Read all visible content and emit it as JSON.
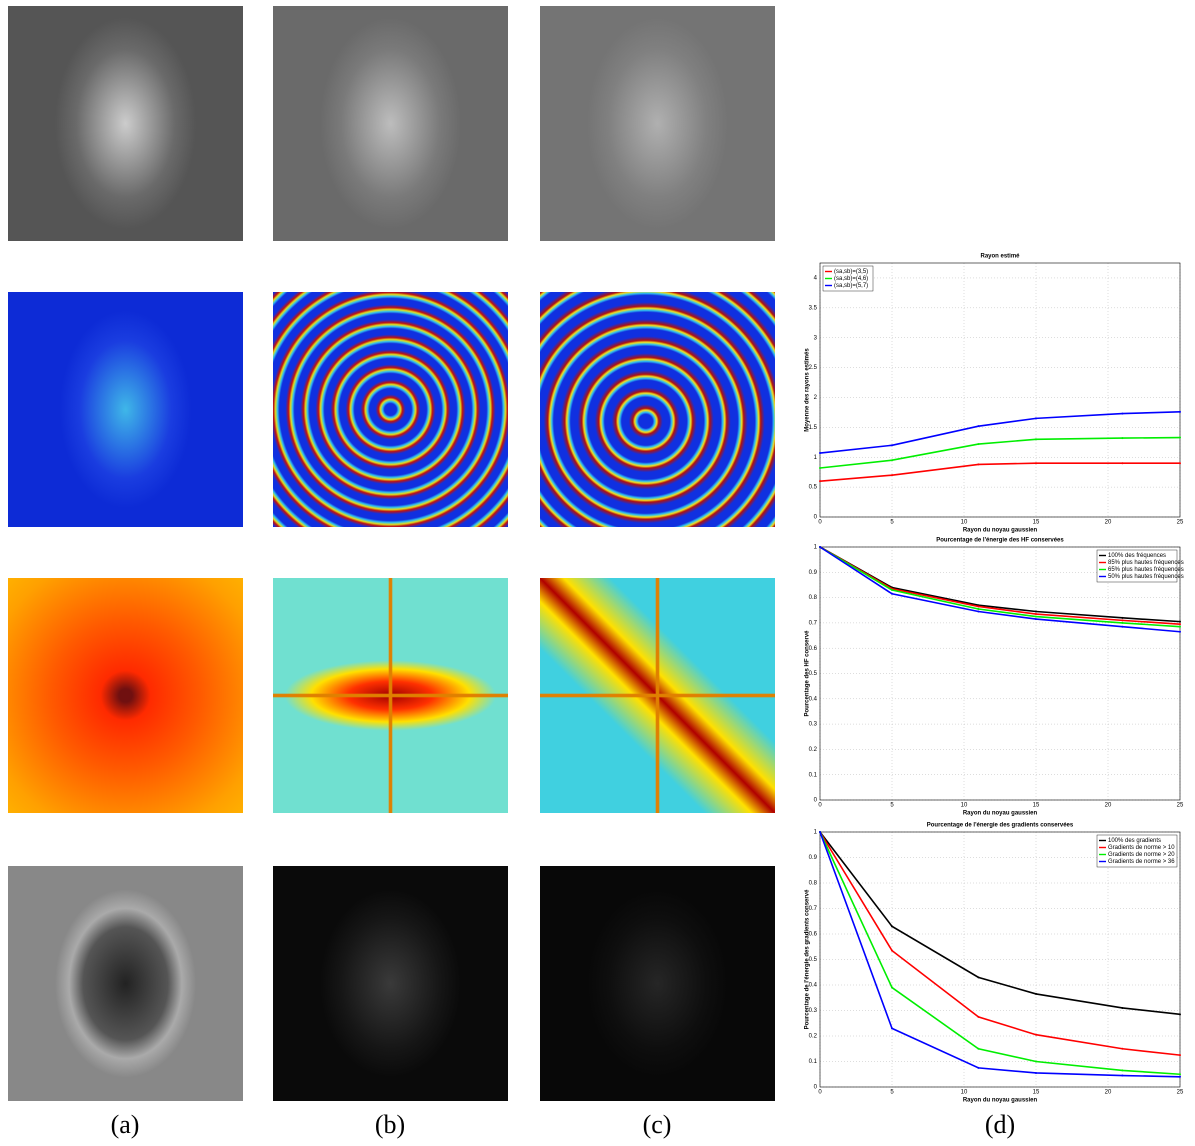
{
  "captions": [
    "(a)",
    "(b)",
    "(c)",
    "(d)"
  ],
  "chart_data": [
    {
      "type": "line",
      "title": "Rayon estimé",
      "xlabel": "Rayon du noyau gaussien",
      "ylabel": "Moyenne des rayons estimés",
      "x": [
        0,
        5,
        11,
        15,
        21,
        25
      ],
      "xlim": [
        0,
        25
      ],
      "xticks": [
        0,
        5,
        10,
        15,
        20,
        25
      ],
      "ylim": [
        0,
        4.25
      ],
      "yticks": [
        0,
        0.5,
        1,
        1.5,
        2,
        2.5,
        3,
        3.5,
        4
      ],
      "grid": true,
      "legend": "upper-left",
      "series": [
        {
          "name": "(sa,sb)=(3,5)",
          "color": "#ff0000",
          "values": [
            0.6,
            0.7,
            0.88,
            0.9,
            0.9,
            0.9
          ]
        },
        {
          "name": "(sa,sb)=(4,6)",
          "color": "#00ee00",
          "values": [
            0.82,
            0.95,
            1.22,
            1.3,
            1.32,
            1.33
          ]
        },
        {
          "name": "(sa,sb)=(5,7)",
          "color": "#0000ff",
          "values": [
            1.07,
            1.2,
            1.52,
            1.65,
            1.73,
            1.76
          ]
        }
      ]
    },
    {
      "type": "line",
      "title": "Pourcentage de l'énergie des HF conservées",
      "xlabel": "Rayon du noyau gaussien",
      "ylabel": "Pourcentage des HF conservé",
      "x": [
        0,
        5,
        11,
        15,
        21,
        25
      ],
      "xlim": [
        0,
        25
      ],
      "xticks": [
        0,
        5,
        10,
        15,
        20,
        25
      ],
      "ylim": [
        0,
        1
      ],
      "yticks": [
        0,
        0.1,
        0.2,
        0.3,
        0.4,
        0.5,
        0.6,
        0.7,
        0.8,
        0.9,
        1
      ],
      "grid": true,
      "legend": "upper-right",
      "series": [
        {
          "name": "100% des fréquences",
          "color": "#000000",
          "values": [
            1,
            0.84,
            0.77,
            0.745,
            0.72,
            0.705
          ]
        },
        {
          "name": "85% plus hautes fréquences",
          "color": "#ff0000",
          "values": [
            1,
            0.835,
            0.765,
            0.735,
            0.71,
            0.695
          ]
        },
        {
          "name": "65% plus hautes fréquences",
          "color": "#00ee00",
          "values": [
            1,
            0.83,
            0.755,
            0.725,
            0.7,
            0.685
          ]
        },
        {
          "name": "50% plus hautes fréquences",
          "color": "#0000ff",
          "values": [
            1,
            0.815,
            0.745,
            0.715,
            0.685,
            0.665
          ]
        }
      ]
    },
    {
      "type": "line",
      "title": "Pourcentage de l'énergie des gradients conservées",
      "xlabel": "Rayon du noyau gaussien",
      "ylabel": "Pourcentage de l'énergie des gradients conservé",
      "x": [
        0,
        5,
        11,
        15,
        21,
        25
      ],
      "xlim": [
        0,
        25
      ],
      "xticks": [
        0,
        5,
        10,
        15,
        20,
        25
      ],
      "ylim": [
        0,
        1
      ],
      "yticks": [
        0,
        0.1,
        0.2,
        0.3,
        0.4,
        0.5,
        0.6,
        0.7,
        0.8,
        0.9,
        1
      ],
      "grid": true,
      "legend": "upper-right",
      "series": [
        {
          "name": "100% des gradients",
          "color": "#000000",
          "values": [
            1,
            0.63,
            0.43,
            0.365,
            0.31,
            0.285
          ]
        },
        {
          "name": "Gradients de norme > 10",
          "color": "#ff0000",
          "values": [
            1,
            0.535,
            0.275,
            0.205,
            0.15,
            0.125
          ]
        },
        {
          "name": "Gradients de norme > 20",
          "color": "#00ee00",
          "values": [
            1,
            0.39,
            0.15,
            0.1,
            0.065,
            0.05
          ]
        },
        {
          "name": "Gradients de norme > 36",
          "color": "#0000ff",
          "values": [
            1,
            0.23,
            0.075,
            0.055,
            0.045,
            0.04
          ]
        }
      ]
    }
  ]
}
